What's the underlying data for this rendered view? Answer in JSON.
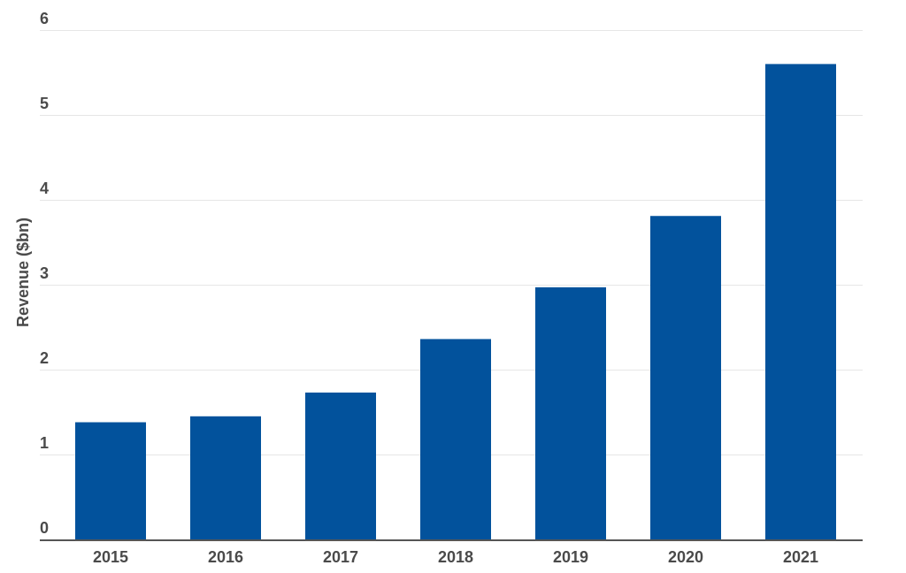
{
  "chart_data": {
    "type": "bar",
    "categories": [
      "2015",
      "2016",
      "2017",
      "2018",
      "2019",
      "2020",
      "2021"
    ],
    "values": [
      1.38,
      1.45,
      1.73,
      2.36,
      2.97,
      3.81,
      5.6
    ],
    "title": "",
    "xlabel": "",
    "ylabel": "Revenue ($bn)",
    "ylim": [
      0,
      6
    ],
    "yticks": [
      "0",
      "1",
      "2",
      "3",
      "4",
      "5",
      "6"
    ],
    "grid": true,
    "legend": "none",
    "bar_color": "#02529c"
  }
}
